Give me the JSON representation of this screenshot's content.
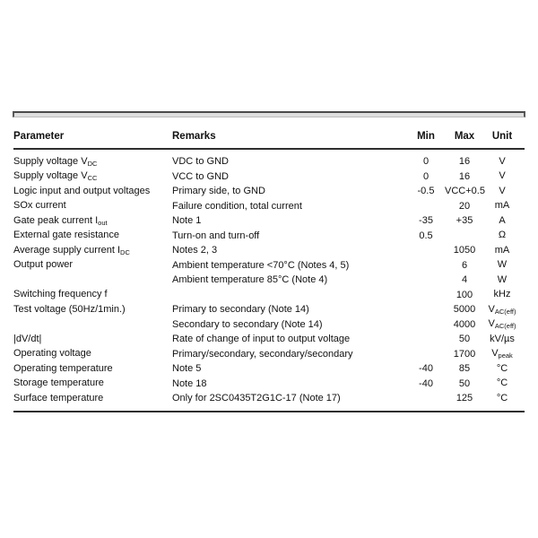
{
  "colors": {
    "background": "#ffffff",
    "text": "#111111",
    "rule": "#2e2e2e",
    "divider_bar_fill": "#dedede",
    "divider_bar_edge": "#4a4a4a"
  },
  "table": {
    "headers": {
      "parameter": "Parameter",
      "remarks": "Remarks",
      "min": "Min",
      "max": "Max",
      "unit": "Unit"
    },
    "rows": [
      {
        "parameter": "Supply voltage V",
        "parameter_sub": "DC",
        "remarks": "VDC to GND",
        "min": "0",
        "max": "16",
        "unit": "V",
        "unit_sub": ""
      },
      {
        "parameter": "Supply voltage V",
        "parameter_sub": "CC",
        "remarks": "VCC to GND",
        "min": "0",
        "max": "16",
        "unit": "V",
        "unit_sub": ""
      },
      {
        "parameter": "Logic input and output voltages",
        "parameter_sub": "",
        "remarks": "Primary side, to GND",
        "min": "-0.5",
        "max": "VCC+0.5",
        "unit": "V",
        "unit_sub": ""
      },
      {
        "parameter": "SOx current",
        "parameter_sub": "",
        "remarks": "Failure condition, total current",
        "min": "",
        "max": "20",
        "unit": "mA",
        "unit_sub": ""
      },
      {
        "parameter": "Gate peak current I",
        "parameter_sub": "out",
        "remarks": "Note 1",
        "min": "-35",
        "max": "+35",
        "unit": "A",
        "unit_sub": ""
      },
      {
        "parameter": "External gate resistance",
        "parameter_sub": "",
        "remarks": "Turn-on and turn-off",
        "min": "0.5",
        "max": "",
        "unit": "Ω",
        "unit_sub": ""
      },
      {
        "parameter": "Average supply current I",
        "parameter_sub": "DC",
        "remarks": "Notes 2, 3",
        "min": "",
        "max": "1050",
        "unit": "mA",
        "unit_sub": ""
      },
      {
        "parameter": "Output power",
        "parameter_sub": "",
        "remarks": "Ambient temperature <70°C (Notes 4, 5)",
        "min": "",
        "max": "6",
        "unit": "W",
        "unit_sub": ""
      },
      {
        "parameter": "",
        "parameter_sub": "",
        "remarks": "Ambient temperature 85°C (Note 4)",
        "min": "",
        "max": "4",
        "unit": "W",
        "unit_sub": ""
      },
      {
        "parameter": "Switching frequency f",
        "parameter_sub": "",
        "remarks": "",
        "min": "",
        "max": "100",
        "unit": "kHz",
        "unit_sub": ""
      },
      {
        "parameter": "Test voltage (50Hz/1min.)",
        "parameter_sub": "",
        "remarks": "Primary to secondary (Note 14)",
        "min": "",
        "max": "5000",
        "unit": "V",
        "unit_sub": "AC(eff)"
      },
      {
        "parameter": "",
        "parameter_sub": "",
        "remarks": "Secondary to secondary (Note 14)",
        "min": "",
        "max": "4000",
        "unit": "V",
        "unit_sub": "AC(eff)"
      },
      {
        "parameter": "|dV/dt|",
        "parameter_sub": "",
        "remarks": "Rate of change of input to output voltage",
        "min": "",
        "max": "50",
        "unit": "kV/µs",
        "unit_sub": ""
      },
      {
        "parameter": "Operating voltage",
        "parameter_sub": "",
        "remarks": "Primary/secondary, secondary/secondary",
        "min": "",
        "max": "1700",
        "unit": "V",
        "unit_sub": "peak"
      },
      {
        "parameter": "Operating temperature",
        "parameter_sub": "",
        "remarks": "Note 5",
        "min": "-40",
        "max": "85",
        "unit": "°C",
        "unit_sub": ""
      },
      {
        "parameter": "Storage temperature",
        "parameter_sub": "",
        "remarks": "Note 18",
        "min": "-40",
        "max": "50",
        "unit": "°C",
        "unit_sub": ""
      },
      {
        "parameter": "Surface temperature",
        "parameter_sub": "",
        "remarks": "Only for 2SC0435T2G1C-17 (Note 17)",
        "min": "",
        "max": "125",
        "unit": "°C",
        "unit_sub": ""
      }
    ]
  }
}
